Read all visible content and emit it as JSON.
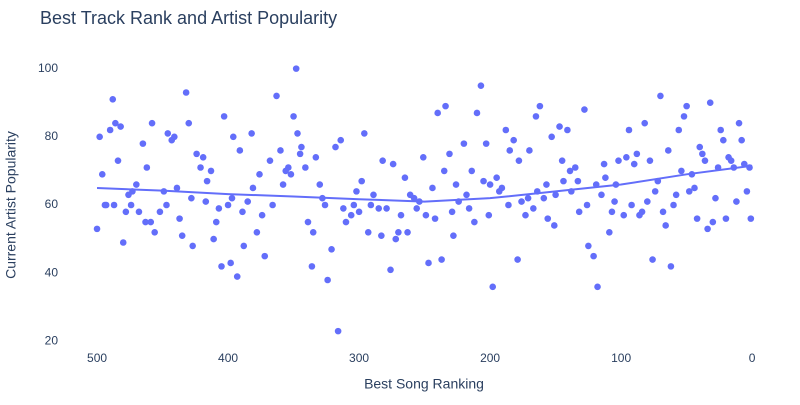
{
  "chart_data": {
    "type": "scatter",
    "title": "Best Track Rank and Artist Popularity",
    "x_label": "Best Song Ranking",
    "y_label": "Current Artist Popularity",
    "xlim": [
      513,
      -6
    ],
    "ylim": [
      16,
      104
    ],
    "xticks": [
      500,
      400,
      300,
      200,
      100,
      0
    ],
    "yticks": [
      20,
      40,
      60,
      80,
      100
    ],
    "grid": false,
    "series": [
      {
        "mode": "markers",
        "color": "#636efa",
        "x": [
          500,
          498,
          496,
          493,
          490,
          488,
          486,
          484,
          482,
          480,
          478,
          476,
          473,
          470,
          468,
          465,
          462,
          459,
          458,
          456,
          452,
          449,
          446,
          443,
          441,
          439,
          435,
          432,
          430,
          427,
          424,
          421,
          419,
          416,
          413,
          411,
          407,
          405,
          403,
          400,
          398,
          396,
          393,
          391,
          388,
          385,
          382,
          378,
          376,
          372,
          368,
          363,
          360,
          356,
          352,
          350,
          348,
          347,
          344,
          341,
          336,
          333,
          330,
          326,
          324,
          321,
          318,
          316,
          314,
          310,
          306,
          302,
          298,
          296,
          293,
          289,
          285,
          282,
          279,
          276,
          272,
          268,
          265,
          261,
          258,
          254,
          251,
          247,
          244,
          240,
          237,
          234,
          231,
          228,
          224,
          220,
          216,
          212,
          210,
          207,
          203,
          200,
          198,
          195,
          191,
          188,
          185,
          182,
          179,
          176,
          173,
          170,
          167,
          165,
          162,
          159,
          156,
          153,
          150,
          147,
          144,
          141,
          138,
          135,
          132,
          128,
          125,
          121,
          118,
          115,
          112,
          109,
          105,
          102,
          98,
          96,
          94,
          92,
          90,
          88,
          86,
          84,
          82,
          80,
          78,
          76,
          74,
          72,
          70,
          68,
          66,
          64,
          62,
          60,
          58,
          56,
          54,
          52,
          50,
          48,
          46,
          44,
          42,
          40,
          38,
          36,
          34,
          32,
          30,
          28,
          26,
          24,
          22,
          20,
          18,
          16,
          14,
          12,
          10,
          8,
          6,
          4,
          2,
          1,
          494,
          487,
          474,
          463,
          447,
          437,
          428,
          417,
          409,
          397,
          389,
          381,
          374,
          366,
          358,
          354,
          345,
          339,
          335,
          328,
          312,
          304,
          300,
          291,
          283,
          274,
          270,
          263,
          256,
          249,
          242,
          235,
          229,
          226,
          218,
          214,
          205,
          201,
          193,
          186,
          178,
          171,
          164,
          157,
          151,
          145,
          139,
          133,
          126,
          119,
          113,
          107,
          104
        ],
        "y": [
          53,
          80,
          69,
          60,
          82,
          91,
          84,
          73,
          83,
          49,
          58,
          63,
          64,
          66,
          58,
          78,
          71,
          55,
          84,
          52,
          58,
          64,
          81,
          79,
          80,
          65,
          51,
          93,
          84,
          48,
          75,
          71,
          74,
          67,
          70,
          50,
          59,
          42,
          86,
          60,
          43,
          80,
          39,
          76,
          48,
          61,
          81,
          52,
          69,
          45,
          73,
          92,
          76,
          70,
          69,
          86,
          100,
          81,
          77,
          71,
          42,
          74,
          66,
          60,
          38,
          47,
          77,
          23,
          79,
          55,
          57,
          64,
          67,
          81,
          52,
          63,
          59,
          73,
          59,
          41,
          50,
          57,
          68,
          63,
          62,
          61,
          74,
          43,
          65,
          87,
          44,
          89,
          75,
          51,
          61,
          78,
          59,
          55,
          87,
          95,
          78,
          66,
          36,
          68,
          65,
          82,
          76,
          79,
          44,
          61,
          57,
          76,
          59,
          86,
          89,
          62,
          56,
          80,
          63,
          83,
          67,
          82,
          64,
          71,
          58,
          88,
          48,
          45,
          36,
          63,
          68,
          52,
          61,
          73,
          57,
          74,
          82,
          60,
          72,
          75,
          57,
          58,
          84,
          61,
          73,
          44,
          64,
          67,
          92,
          58,
          54,
          76,
          42,
          60,
          63,
          82,
          70,
          86,
          89,
          64,
          69,
          65,
          56,
          77,
          75,
          73,
          53,
          90,
          55,
          62,
          71,
          82,
          79,
          56,
          74,
          73,
          71,
          61,
          84,
          79,
          72,
          64,
          71,
          56,
          60,
          60,
          60,
          55,
          60,
          56,
          62,
          61,
          55,
          62,
          58,
          65,
          57,
          60,
          66,
          71,
          75,
          55,
          52,
          62,
          59,
          60,
          58,
          60,
          51,
          72,
          52,
          52,
          59,
          57,
          56,
          70,
          58,
          66,
          63,
          70,
          67,
          57,
          64,
          60,
          73,
          62,
          64,
          66,
          54,
          73,
          70,
          67,
          60,
          66,
          72,
          58,
          66
        ]
      },
      {
        "mode": "lines",
        "color": "#636efa",
        "x": [
          500,
          450,
          400,
          350,
          300,
          250,
          200,
          150,
          100,
          50,
          0
        ],
        "y": [
          65,
          64.2,
          63.2,
          62.5,
          61.7,
          61,
          62,
          64,
          66,
          69,
          71.5
        ]
      }
    ]
  }
}
